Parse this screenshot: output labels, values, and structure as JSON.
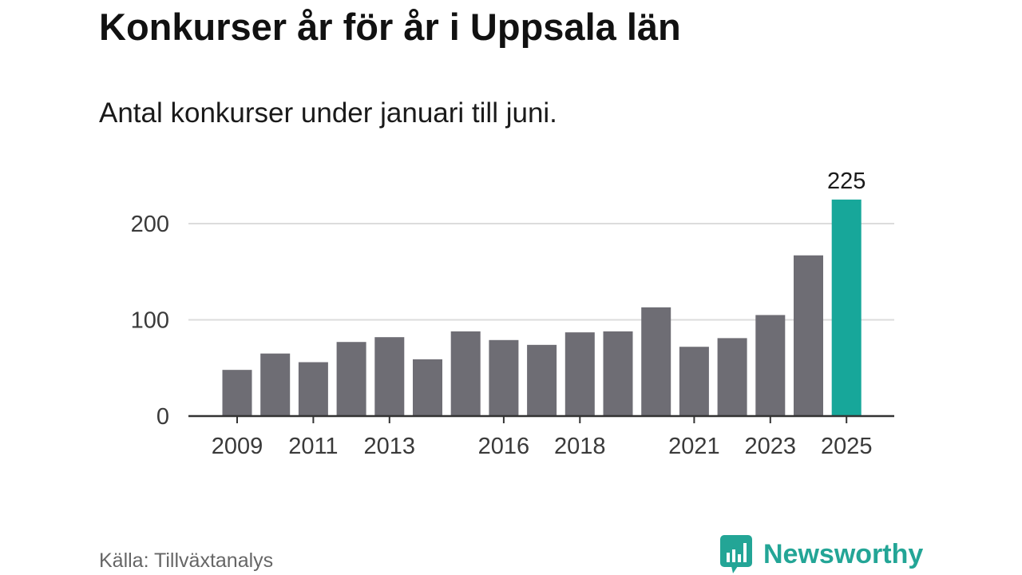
{
  "title": "Konkurser år för år i Uppsala län",
  "subtitle": "Antal konkurser under januari till juni.",
  "source": "Källa: Tillväxtanalys",
  "brand": {
    "name": "Newsworthy",
    "logo_icon": "newsworthy-bar-chart-logo"
  },
  "colors": {
    "bar": "#6e6d74",
    "highlight": "#17a79a",
    "grid": "#dcdcdc",
    "axis": "#333333"
  },
  "chart_data": {
    "type": "bar",
    "title": "Konkurser år för år i Uppsala län",
    "subtitle": "Antal konkurser under januari till juni.",
    "xlabel": "",
    "ylabel": "",
    "categories": [
      "2009",
      "2010",
      "2011",
      "2012",
      "2013",
      "2014",
      "2015",
      "2016",
      "2017",
      "2018",
      "2019",
      "2020",
      "2021",
      "2022",
      "2023",
      "2024",
      "2025"
    ],
    "values": [
      48,
      65,
      56,
      77,
      82,
      59,
      88,
      79,
      74,
      87,
      88,
      113,
      72,
      81,
      105,
      167,
      225
    ],
    "highlight_category": "2025",
    "data_labels": [
      {
        "category": "2025",
        "label": "225"
      }
    ],
    "x_tick_labels": [
      "2009",
      "2011",
      "2013",
      "2016",
      "2018",
      "2021",
      "2023",
      "2025"
    ],
    "y_ticks": [
      0,
      100,
      200
    ],
    "ylim": [
      0,
      225
    ],
    "grid": true,
    "legend": "none"
  }
}
